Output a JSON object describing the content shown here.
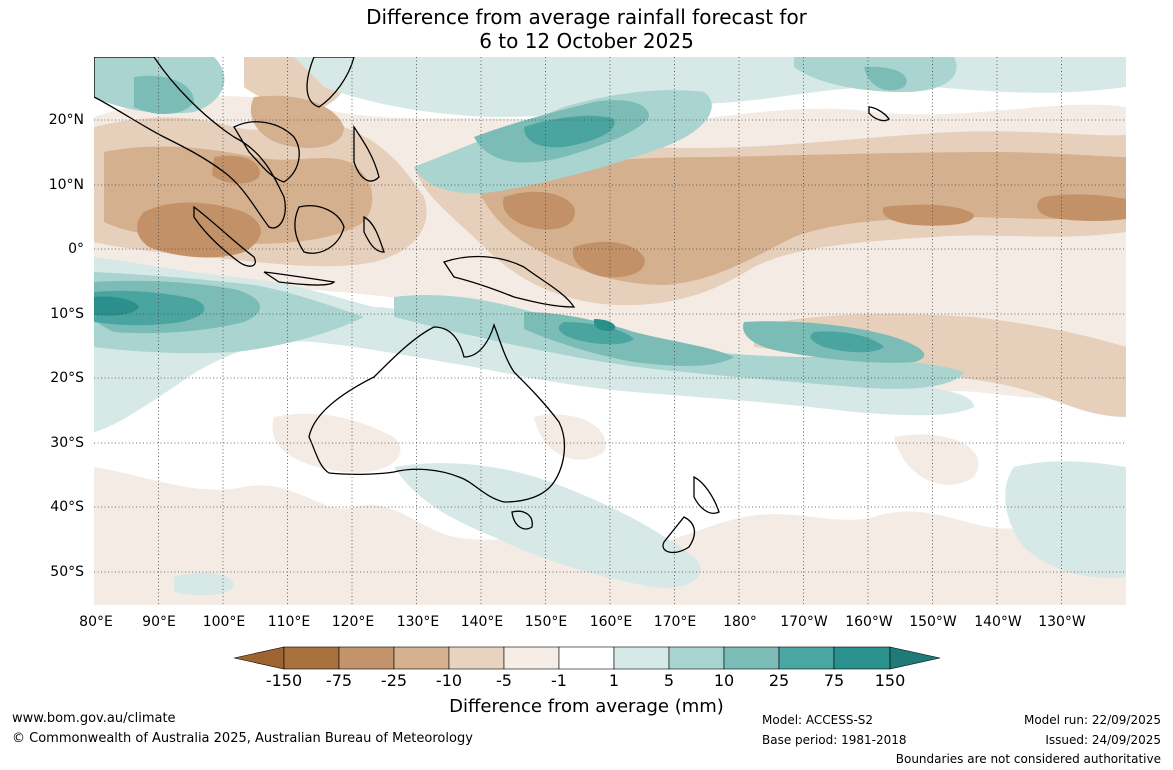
{
  "title": {
    "line1": "Difference from average rainfall forecast for",
    "line2": "6 to 12 October 2025"
  },
  "map": {
    "region": "Indo-Pacific / Australia",
    "longitude_labels": [
      "80°E",
      "90°E",
      "100°E",
      "110°E",
      "120°E",
      "130°E",
      "140°E",
      "150°E",
      "160°E",
      "170°E",
      "180°",
      "170°W",
      "160°W",
      "150°W",
      "140°W",
      "130°W"
    ],
    "latitude_labels": [
      "20°N",
      "10°N",
      "0°",
      "10°S",
      "20°S",
      "30°S",
      "40°S",
      "50°S"
    ],
    "colors": {
      "dry_150": "#a56c38",
      "dry_75": "#c39167",
      "dry_25": "#d4b08e",
      "dry_10": "#e6d0bb",
      "dry_5": "#f4ebe4",
      "neutral": "#ffffff",
      "wet_5": "#d6e9e7",
      "wet_10": "#a9d4d0",
      "wet_25": "#7cbcb6",
      "wet_75": "#4aa5a1",
      "wet_150": "#2b8f8c",
      "wet_max": "#1f7b78"
    }
  },
  "colorbar": {
    "ticks": [
      "-150",
      "-75",
      "-25",
      "-10",
      "-5",
      "-1",
      "1",
      "5",
      "10",
      "25",
      "75",
      "150"
    ],
    "colors": [
      "#9e6430",
      "#a8723e",
      "#c3946b",
      "#d5b18f",
      "#e7d3c0",
      "#f5ede6",
      "#ffffff",
      "#d5e9e7",
      "#a8d4d0",
      "#7bbcb7",
      "#4aa6a2",
      "#2b918e",
      "#1e7b77"
    ],
    "label": "Difference from average (mm)"
  },
  "footer": {
    "website": "www.bom.gov.au/climate",
    "copyright": "© Commonwealth of Australia 2025, Australian Bureau of Meteorology",
    "model": "Model: ACCESS-S2",
    "base_period": "Base period: 1981-2018",
    "model_run": "Model run: 22/09/2025",
    "issued": "Issued: 24/09/2025",
    "disclaimer": "Boundaries are not considered authoritative"
  }
}
